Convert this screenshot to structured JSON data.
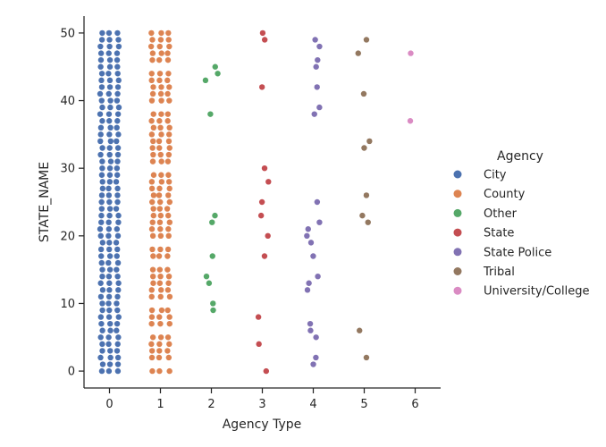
{
  "chart_data": {
    "type": "scatter",
    "subtype": "strip",
    "xlabel": "Agency Type",
    "ylabel": "STATE_NAME",
    "xlim": [
      -0.5,
      6.5
    ],
    "ylim": [
      -2.5,
      52.5
    ],
    "x_ticks": [
      0,
      1,
      2,
      3,
      4,
      5,
      6
    ],
    "y_ticks": [
      0,
      10,
      20,
      30,
      40,
      50
    ],
    "grid": false,
    "legend": {
      "title": "Agency",
      "placement": "right"
    },
    "series": [
      {
        "name": "City",
        "color": "#4c72b0",
        "x": 0,
        "values": [
          0,
          1,
          2,
          3,
          4,
          5,
          6,
          7,
          8,
          9,
          10,
          11,
          12,
          13,
          14,
          15,
          16,
          17,
          18,
          19,
          20,
          21,
          22,
          23,
          24,
          25,
          26,
          27,
          28,
          29,
          30,
          31,
          32,
          33,
          34,
          35,
          36,
          37,
          38,
          39,
          40,
          41,
          42,
          43,
          44,
          45,
          46,
          47,
          48,
          49,
          50
        ]
      },
      {
        "name": "County",
        "color": "#dd8452",
        "x": 1,
        "values": [
          0,
          2,
          3,
          4,
          5,
          7,
          8,
          9,
          11,
          12,
          13,
          14,
          15,
          17,
          18,
          20,
          21,
          22,
          23,
          24,
          25,
          26,
          27,
          28,
          29,
          31,
          32,
          33,
          34,
          35,
          36,
          37,
          38,
          40,
          41,
          42,
          43,
          44,
          46,
          47,
          48,
          49,
          50
        ]
      },
      {
        "name": "Other",
        "color": "#55a868",
        "x": 2,
        "values": [
          9,
          10,
          13,
          14,
          17,
          22,
          23,
          38,
          43,
          44,
          45
        ]
      },
      {
        "name": "State",
        "color": "#c44e52",
        "x": 3,
        "values": [
          0,
          4,
          8,
          17,
          20,
          23,
          25,
          28,
          30,
          42,
          49,
          50
        ]
      },
      {
        "name": "State Police",
        "color": "#8172b3",
        "x": 4,
        "values": [
          1,
          2,
          5,
          6,
          7,
          12,
          13,
          14,
          17,
          19,
          20,
          21,
          22,
          25,
          38,
          39,
          42,
          45,
          46,
          48,
          49
        ]
      },
      {
        "name": "Tribal",
        "color": "#937860",
        "x": 5,
        "values": [
          2,
          6,
          22,
          23,
          26,
          33,
          34,
          41,
          47,
          49
        ]
      },
      {
        "name": "University/College",
        "color": "#da8bc3",
        "x": 6,
        "values": [
          37,
          47
        ]
      }
    ]
  }
}
